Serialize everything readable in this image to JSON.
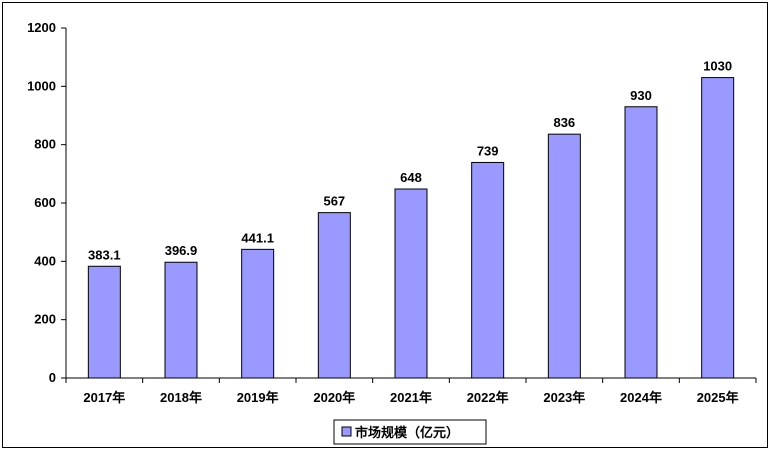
{
  "chart_data": {
    "type": "bar",
    "categories": [
      "2017年",
      "2018年",
      "2019年",
      "2020年",
      "2021年",
      "2022年",
      "2023年",
      "2024年",
      "2025年"
    ],
    "values": [
      383.1,
      396.9,
      441.1,
      567,
      648,
      739,
      836,
      930,
      1030
    ],
    "value_labels": [
      "383.1",
      "396.9",
      "441.1",
      "567",
      "648",
      "739",
      "836",
      "930",
      "1030"
    ],
    "series": [
      {
        "name": "市场规模（亿元）",
        "values": [
          383.1,
          396.9,
          441.1,
          567,
          648,
          739,
          836,
          930,
          1030
        ]
      }
    ],
    "ylim": [
      0,
      1200
    ],
    "yticks": [
      0,
      200,
      400,
      600,
      800,
      1000,
      1200
    ],
    "grid": false,
    "legend_position": "bottom",
    "bar_color": "#9999ff",
    "bar_border_color": "#000000"
  }
}
